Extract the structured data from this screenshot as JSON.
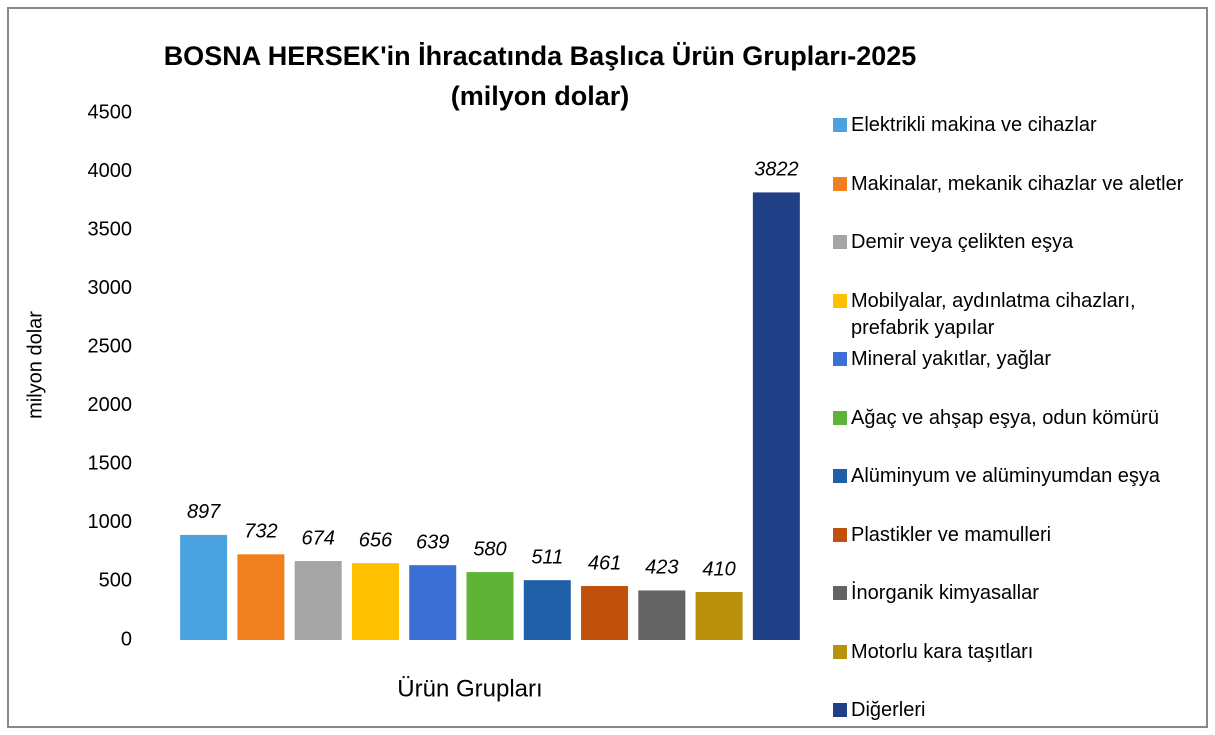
{
  "chart_data": {
    "type": "bar",
    "title": "BOSNA HERSEK'in İhracatında Başlıca Ürün Grupları-2025",
    "subtitle": "(milyon dolar)",
    "x_label": "Ürün Grupları",
    "y_label": "milyon dolar",
    "ylim": [
      0,
      4500
    ],
    "yticks": [
      0,
      500,
      1000,
      1500,
      2000,
      2500,
      3000,
      3500,
      4000,
      4500
    ],
    "grid": false,
    "legend": "right",
    "series": [
      {
        "name": "Elektrikli makina ve cihazlar",
        "color": "#4aa3df",
        "values": [
          897
        ]
      },
      {
        "name": "Makinalar, mekanik cihazlar ve aletler",
        "color": "#f07f1e",
        "values": [
          732
        ]
      },
      {
        "name": "Demir veya çelikten eşya",
        "color": "#a5a5a5",
        "values": [
          674
        ]
      },
      {
        "name": "Mobilyalar, aydınlatma cihazları, prefabrik yapılar",
        "color": "#ffc000",
        "values": [
          656
        ]
      },
      {
        "name": "Mineral yakıtlar, yağlar",
        "color": "#3b6fd6",
        "values": [
          639
        ]
      },
      {
        "name": "Ağaç ve ahşap eşya, odun kömürü",
        "color": "#5fb337",
        "values": [
          580
        ]
      },
      {
        "name": "Alüminyum ve alüminyumdan eşya",
        "color": "#1f5fa8",
        "values": [
          511
        ]
      },
      {
        "name": "Plastikler ve mamulleri",
        "color": "#c0500c",
        "values": [
          461
        ]
      },
      {
        "name": "İnorganik kimyasallar",
        "color": "#636363",
        "values": [
          423
        ]
      },
      {
        "name": "Motorlu kara taşıtları",
        "color": "#b8900b",
        "values": [
          410
        ]
      },
      {
        "name": "Diğerleri",
        "color": "#1f3f86",
        "values": [
          3822
        ]
      }
    ]
  }
}
